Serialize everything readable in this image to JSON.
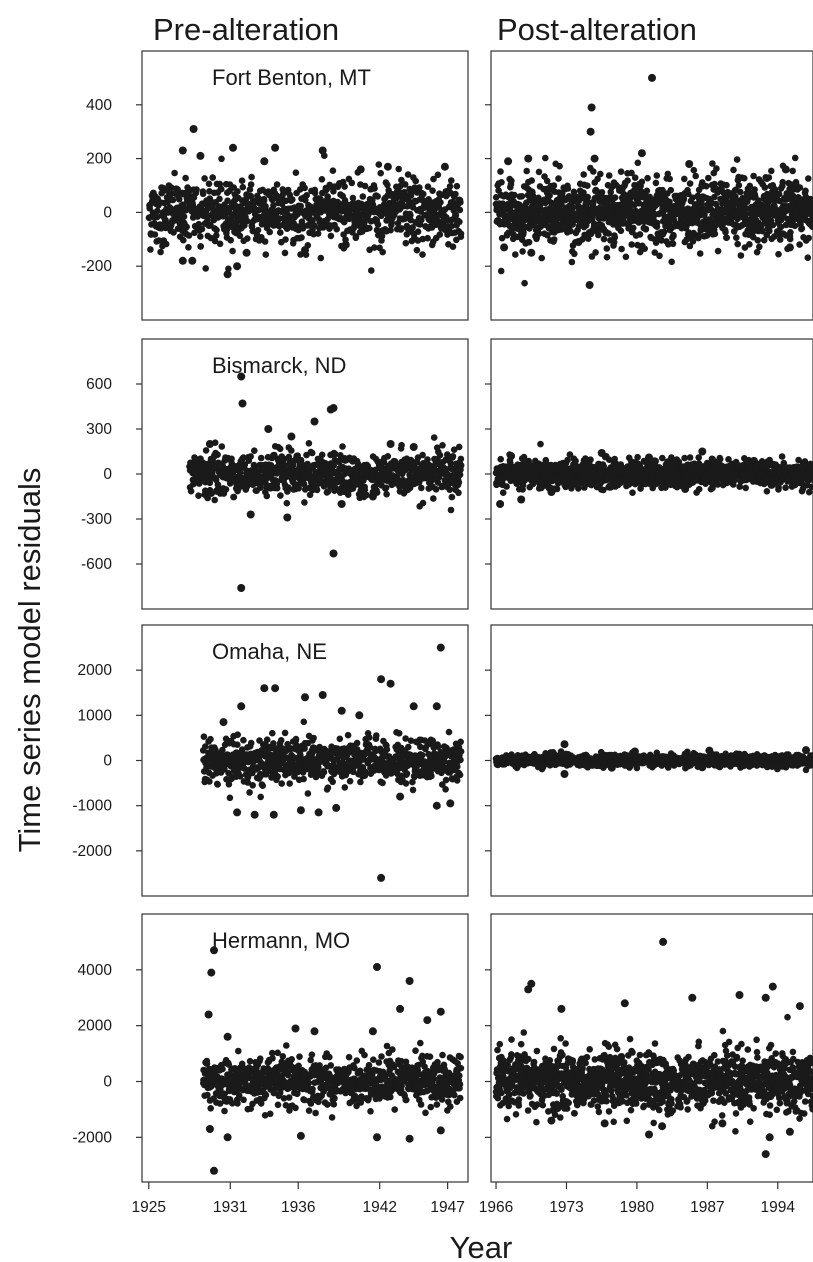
{
  "chart_data": {
    "type": "scatter",
    "column_titles": [
      "Pre-alteration",
      "Post-alteration"
    ],
    "xlabel": "Year",
    "ylabel": "Time series model residuals",
    "x_axes": [
      {
        "range": [
          1924.5,
          1948.5
        ],
        "ticks": [
          1925,
          1931,
          1936,
          1942,
          1947
        ]
      },
      {
        "range": [
          1965.5,
          1997.5
        ],
        "ticks": [
          1966,
          1973,
          1980,
          1987,
          1994
        ]
      }
    ],
    "panels": [
      {
        "row": 0,
        "station": "Fort Benton, MT",
        "ylim": [
          -400,
          600
        ],
        "yticks": [
          -200,
          0,
          200,
          400
        ],
        "pre": {
          "x_start": 1925,
          "x_end": 1948,
          "spread": 60,
          "outliers": [
            [
              1927.5,
              230
            ],
            [
              1928.3,
              310
            ],
            [
              1928.8,
              210
            ],
            [
              1931.2,
              240
            ],
            [
              1933.5,
              190
            ],
            [
              1934.3,
              240
            ],
            [
              1937.8,
              230
            ],
            [
              1940.6,
              160
            ],
            [
              1942.6,
              170
            ],
            [
              1946.8,
              170
            ],
            [
              1927.5,
              -180
            ],
            [
              1928.2,
              -180
            ],
            [
              1930.8,
              -230
            ],
            [
              1931.5,
              -200
            ],
            [
              1932.2,
              -150
            ],
            [
              1936.5,
              -140
            ],
            [
              1939.5,
              -120
            ]
          ]
        },
        "post": {
          "x_start": 1966,
          "x_end": 1997.5,
          "spread": 60,
          "outliers": [
            [
              1967.2,
              190
            ],
            [
              1969.2,
              200
            ],
            [
              1975.5,
              390
            ],
            [
              1975.4,
              300
            ],
            [
              1975.8,
              200
            ],
            [
              1980.5,
              220
            ],
            [
              1981.5,
              500
            ],
            [
              1985.2,
              180
            ],
            [
              1986.5,
              100
            ],
            [
              1994.8,
              160
            ],
            [
              1975.3,
              -270
            ],
            [
              1966.8,
              -130
            ],
            [
              1969.5,
              -150
            ],
            [
              1974.2,
              -110
            ],
            [
              1995.2,
              -130
            ]
          ]
        }
      },
      {
        "row": 1,
        "station": "Bismarck, ND",
        "ylim": [
          -900,
          900
        ],
        "yticks": [
          -600,
          -300,
          0,
          300,
          600
        ],
        "pre": {
          "x_start": 1928,
          "x_end": 1948,
          "spread": 70,
          "outliers": [
            [
              1929.5,
              200
            ],
            [
              1931.8,
              650
            ],
            [
              1931.9,
              470
            ],
            [
              1933.8,
              300
            ],
            [
              1935.5,
              250
            ],
            [
              1937.2,
              350
            ],
            [
              1938.6,
              440
            ],
            [
              1938.4,
              430
            ],
            [
              1942.8,
              200
            ],
            [
              1944.5,
              180
            ],
            [
              1931.8,
              -760
            ],
            [
              1932.5,
              -270
            ],
            [
              1935.2,
              -290
            ],
            [
              1938.6,
              -530
            ],
            [
              1939.2,
              -200
            ],
            [
              1941.5,
              -150
            ]
          ]
        },
        "post": {
          "x_start": 1966,
          "x_end": 1997.5,
          "spread": 45,
          "outliers": [
            [
              1967.5,
              120
            ],
            [
              1976.5,
              140
            ],
            [
              1981.2,
              110
            ],
            [
              1986.5,
              150
            ],
            [
              1966.4,
              -200
            ],
            [
              1968.5,
              -170
            ],
            [
              1971.5,
              -120
            ],
            [
              1984.8,
              -100
            ]
          ]
        }
      },
      {
        "row": 2,
        "station": "Omaha, NE",
        "ylim": [
          -3000,
          3000
        ],
        "yticks": [
          -2000,
          -1000,
          0,
          1000,
          2000
        ],
        "pre": {
          "x_start": 1929,
          "x_end": 1948,
          "spread": 250,
          "outliers": [
            [
              1930.5,
              850
            ],
            [
              1931.8,
              1200
            ],
            [
              1933.5,
              1600
            ],
            [
              1934.3,
              1600
            ],
            [
              1936.5,
              1400
            ],
            [
              1937.8,
              1450
            ],
            [
              1939.2,
              1100
            ],
            [
              1940.5,
              1000
            ],
            [
              1942.1,
              1800
            ],
            [
              1942.8,
              1700
            ],
            [
              1944.5,
              1200
            ],
            [
              1946.5,
              2500
            ],
            [
              1946.2,
              1200
            ],
            [
              1931.5,
              -1150
            ],
            [
              1932.8,
              -1200
            ],
            [
              1934.2,
              -1200
            ],
            [
              1936.2,
              -1100
            ],
            [
              1937.5,
              -1150
            ],
            [
              1938.8,
              -1050
            ],
            [
              1942.1,
              -2600
            ],
            [
              1943.5,
              -800
            ],
            [
              1946.2,
              -1000
            ],
            [
              1947.2,
              -950
            ]
          ]
        },
        "post": {
          "x_start": 1966,
          "x_end": 1997.5,
          "spread": 60,
          "outliers": [
            [
              1972.8,
              360
            ],
            [
              1979.8,
              200
            ],
            [
              1987.2,
              220
            ],
            [
              1996.8,
              230
            ],
            [
              1972.8,
              -300
            ],
            [
              1977.5,
              -160
            ],
            [
              1986.5,
              -150
            ]
          ]
        }
      },
      {
        "row": 3,
        "station": "Hermann, MO",
        "ylim": [
          -3600,
          6000
        ],
        "yticks": [
          -2000,
          0,
          2000,
          4000
        ],
        "pre": {
          "x_start": 1929,
          "x_end": 1948,
          "spread": 420,
          "outliers": [
            [
              1929.8,
              4700
            ],
            [
              1929.6,
              3900
            ],
            [
              1929.4,
              2400
            ],
            [
              1930.8,
              1600
            ],
            [
              1935.8,
              1900
            ],
            [
              1937.2,
              1800
            ],
            [
              1941.5,
              1800
            ],
            [
              1941.8,
              4100
            ],
            [
              1943.5,
              2600
            ],
            [
              1944.2,
              3600
            ],
            [
              1945.5,
              2200
            ],
            [
              1946.5,
              2500
            ],
            [
              1929.5,
              -1700
            ],
            [
              1930.8,
              -2000
            ],
            [
              1936.2,
              -1950
            ],
            [
              1941.8,
              -2000
            ],
            [
              1944.2,
              -2050
            ],
            [
              1946.5,
              -1750
            ],
            [
              1929.8,
              -3200
            ]
          ]
        },
        "post": {
          "x_start": 1966,
          "x_end": 1997.5,
          "spread": 520,
          "outliers": [
            [
              1969.5,
              3500
            ],
            [
              1969.2,
              3300
            ],
            [
              1972.5,
              2600
            ],
            [
              1978.8,
              2800
            ],
            [
              1982.6,
              5000
            ],
            [
              1985.5,
              3000
            ],
            [
              1990.2,
              3100
            ],
            [
              1993.5,
              3400
            ],
            [
              1992.8,
              3000
            ],
            [
              1996.2,
              2700
            ],
            [
              1971.5,
              -1400
            ],
            [
              1976.8,
              -1500
            ],
            [
              1981.2,
              -1900
            ],
            [
              1982.5,
              -1600
            ],
            [
              1988.5,
              -1500
            ],
            [
              1992.8,
              -2600
            ],
            [
              1995.2,
              -1800
            ],
            [
              1993.2,
              -2000
            ]
          ]
        }
      }
    ]
  }
}
